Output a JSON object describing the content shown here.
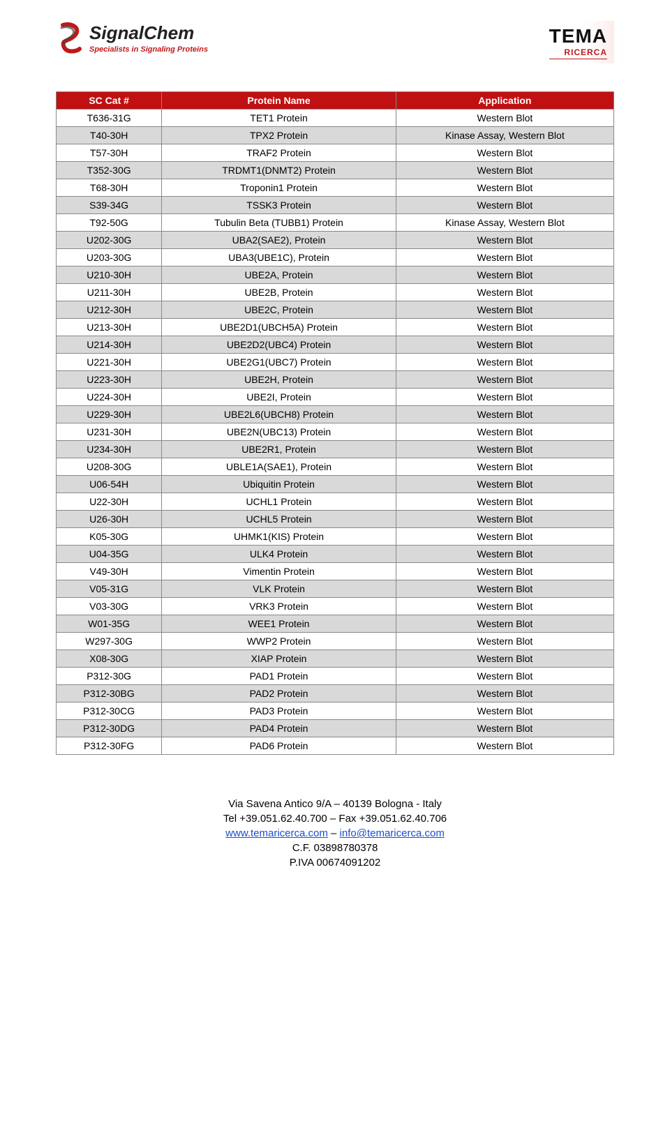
{
  "header": {
    "left": {
      "brand": "SignalChem",
      "tagline": "Specialists in Signaling Proteins",
      "icon_color_primary": "#c01818",
      "icon_color_secondary": "#444444"
    },
    "right": {
      "brand": "TEMA",
      "sub": "RICERCA",
      "accent": "#c01818"
    }
  },
  "table": {
    "header_bg": "#c01012",
    "header_fg": "#ffffff",
    "row_alt_bg": "#d9d9d9",
    "border_color": "#888888",
    "font_size": 14,
    "columns": [
      "SC Cat #",
      "Protein Name",
      "Application"
    ],
    "rows": [
      [
        "T636-31G",
        "TET1 Protein",
        "Western Blot"
      ],
      [
        "T40-30H",
        "TPX2 Protein",
        "Kinase Assay, Western Blot"
      ],
      [
        "T57-30H",
        "TRAF2 Protein",
        "Western Blot"
      ],
      [
        "T352-30G",
        "TRDMT1(DNMT2) Protein",
        "Western Blot"
      ],
      [
        "T68-30H",
        "Troponin1 Protein",
        "Western Blot"
      ],
      [
        "S39-34G",
        "TSSK3 Protein",
        "Western Blot"
      ],
      [
        "T92-50G",
        "Tubulin Beta (TUBB1) Protein",
        "Kinase Assay, Western Blot"
      ],
      [
        "U202-30G",
        "UBA2(SAE2), Protein",
        "Western Blot"
      ],
      [
        "U203-30G",
        "UBA3(UBE1C), Protein",
        "Western Blot"
      ],
      [
        "U210-30H",
        "UBE2A, Protein",
        "Western Blot"
      ],
      [
        "U211-30H",
        "UBE2B, Protein",
        "Western Blot"
      ],
      [
        "U212-30H",
        "UBE2C, Protein",
        "Western Blot"
      ],
      [
        "U213-30H",
        "UBE2D1(UBCH5A) Protein",
        "Western Blot"
      ],
      [
        "U214-30H",
        "UBE2D2(UBC4) Protein",
        "Western Blot"
      ],
      [
        "U221-30H",
        "UBE2G1(UBC7) Protein",
        "Western Blot"
      ],
      [
        "U223-30H",
        "UBE2H, Protein",
        "Western Blot"
      ],
      [
        "U224-30H",
        "UBE2I, Protein",
        "Western Blot"
      ],
      [
        "U229-30H",
        "UBE2L6(UBCH8) Protein",
        "Western Blot"
      ],
      [
        "U231-30H",
        "UBE2N(UBC13) Protein",
        "Western Blot"
      ],
      [
        "U234-30H",
        "UBE2R1, Protein",
        "Western Blot"
      ],
      [
        "U208-30G",
        "UBLE1A(SAE1), Protein",
        "Western Blot"
      ],
      [
        "U06-54H",
        "Ubiquitin Protein",
        "Western Blot"
      ],
      [
        "U22-30H",
        "UCHL1 Protein",
        "Western Blot"
      ],
      [
        "U26-30H",
        "UCHL5 Protein",
        "Western Blot"
      ],
      [
        "K05-30G",
        "UHMK1(KIS) Protein",
        "Western Blot"
      ],
      [
        "U04-35G",
        "ULK4 Protein",
        "Western Blot"
      ],
      [
        "V49-30H",
        "Vimentin Protein",
        "Western Blot"
      ],
      [
        "V05-31G",
        "VLK Protein",
        "Western Blot"
      ],
      [
        "V03-30G",
        "VRK3 Protein",
        "Western Blot"
      ],
      [
        "W01-35G",
        "WEE1 Protein",
        "Western Blot"
      ],
      [
        "W297-30G",
        "WWP2 Protein",
        "Western Blot"
      ],
      [
        "X08-30G",
        "XIAP Protein",
        "Western Blot"
      ],
      [
        "P312-30G",
        "PAD1 Protein",
        "Western Blot"
      ],
      [
        "P312-30BG",
        "PAD2 Protein",
        "Western Blot"
      ],
      [
        "P312-30CG",
        "PAD3 Protein",
        "Western Blot"
      ],
      [
        "P312-30DG",
        "PAD4 Protein",
        "Western Blot"
      ],
      [
        "P312-30FG",
        "PAD6 Protein",
        "Western Blot"
      ]
    ]
  },
  "footer": {
    "line1": "Via Savena Antico 9/A – 40139 Bologna  - Italy",
    "line2": "Tel +39.051.62.40.700 – Fax +39.051.62.40.706",
    "link1_text": "www.temaricerca.com",
    "link1_sep": " – ",
    "link2_text": "info@temaricerca.com",
    "line4": "C.F. 03898780378",
    "line5": "P.IVA 00674091202"
  }
}
